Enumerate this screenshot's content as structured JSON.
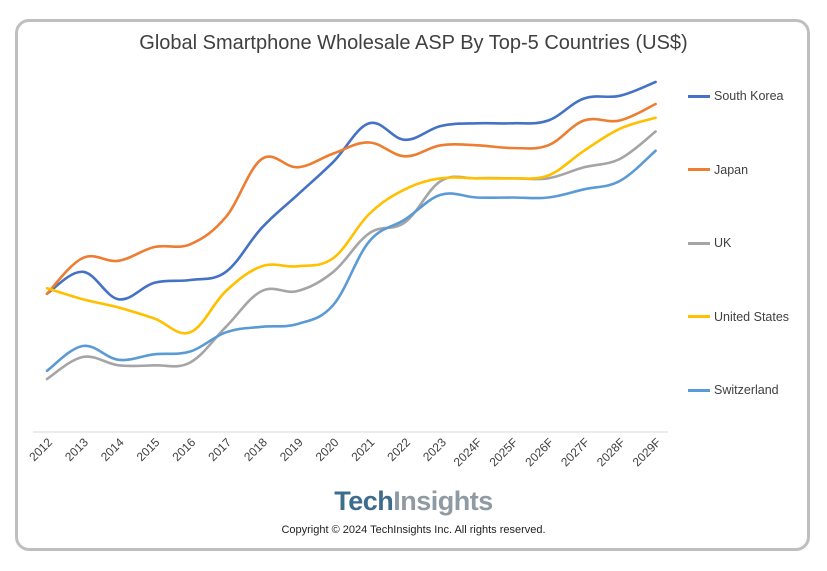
{
  "chart_data": {
    "type": "line",
    "title": "Global Smartphone Wholesale ASP By Top-5 Countries (US$)",
    "xlabel": "",
    "ylabel": "",
    "categories": [
      "2012",
      "2013",
      "2014",
      "2015",
      "2016",
      "2017",
      "2018",
      "2019",
      "2020",
      "2021",
      "2022",
      "2023",
      "2024F",
      "2025F",
      "2026F",
      "2027F",
      "2028F",
      "2029F"
    ],
    "ylim": [
      0,
      100
    ],
    "y_tick_labels": "not shown",
    "value_units": "relative (no y-axis scale printed)",
    "grid": false,
    "legend_position": "right",
    "series": [
      {
        "name": "South Korea",
        "color": "#4472c4",
        "values": [
          27,
          35,
          25,
          31,
          32,
          35,
          51,
          63,
          75,
          89,
          83,
          88,
          89,
          89,
          90,
          98,
          99,
          104
        ]
      },
      {
        "name": "Japan",
        "color": "#ed7d31",
        "values": [
          27,
          40,
          39,
          44,
          45,
          55,
          76,
          73,
          78,
          82,
          77,
          81,
          81,
          80,
          81,
          90,
          90,
          96
        ]
      },
      {
        "name": "UK",
        "color": "#a5a5a5",
        "values": [
          -4,
          4,
          1,
          1,
          2,
          15,
          28,
          28,
          35,
          49,
          53,
          68,
          69,
          69,
          69,
          73,
          76,
          86
        ]
      },
      {
        "name": "United States",
        "color": "#ffc000",
        "values": [
          29,
          25,
          22,
          18,
          13,
          28,
          37,
          37,
          40,
          56,
          65,
          69,
          69,
          69,
          70,
          79,
          87,
          91
        ]
      },
      {
        "name": "Switzerland",
        "color": "#5b9bd5",
        "values": [
          -1,
          8,
          3,
          5,
          6,
          13,
          15,
          16,
          23,
          46,
          54,
          63,
          62,
          62,
          62,
          65,
          68,
          79
        ]
      }
    ]
  },
  "branding": {
    "logo_part1": "Tech",
    "logo_part2": "Insights",
    "copyright": "Copyright © 2024 TechInsights Inc.  All rights reserved."
  }
}
